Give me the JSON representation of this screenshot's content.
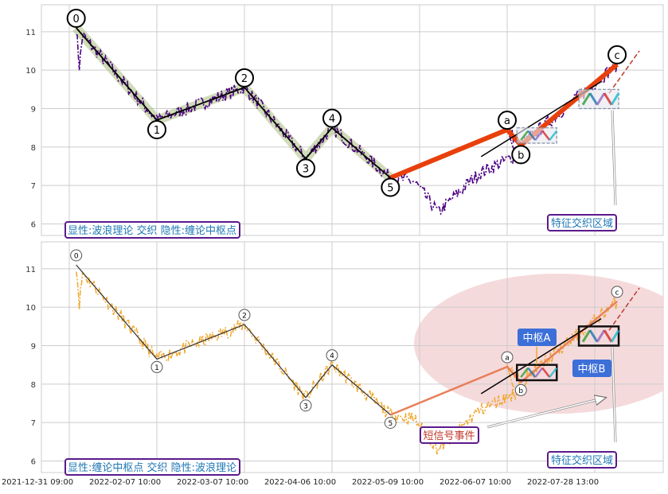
{
  "chart_data": [
    {
      "type": "line",
      "panel": "top",
      "ylim": [
        5.7,
        11.7
      ],
      "y_ticks": [
        6,
        7,
        8,
        9,
        10,
        11
      ],
      "grid": true,
      "annotation_box": "显性:波浪理论 交织 隐性:缠论中枢点",
      "feature_label": "特征交织区域",
      "price_color": "#4b0082",
      "wave_color": "#000000",
      "wave_band_color": "#a9bf7e",
      "trend_color": "#e8400c",
      "wave_points": [
        {
          "label": "0",
          "x": "2022-01-03",
          "y": 11.1
        },
        {
          "label": "1",
          "x": "2022-02-07",
          "y": 8.7
        },
        {
          "label": "2",
          "x": "2022-03-07",
          "y": 9.55
        },
        {
          "label": "3",
          "x": "2022-03-28",
          "y": 7.7
        },
        {
          "label": "4",
          "x": "2022-04-06",
          "y": 8.5
        },
        {
          "label": "5",
          "x": "2022-04-28",
          "y": 7.2
        },
        {
          "label": "a",
          "x": "2022-06-07",
          "y": 8.45
        },
        {
          "label": "b",
          "x": "2022-06-15",
          "y": 8.05
        },
        {
          "label": "c",
          "x": "2022-08-10",
          "y": 10.15
        }
      ]
    },
    {
      "type": "line",
      "panel": "bottom",
      "ylim": [
        5.7,
        11.7
      ],
      "y_ticks": [
        6,
        7,
        8,
        9,
        10,
        11
      ],
      "grid": true,
      "annotation_box": "显性:缠论中枢点 交织 隐性:波浪理论",
      "feature_label": "特征交织区域",
      "signal_label": "短信号事件",
      "pivot_a_label": "中枢A",
      "pivot_b_label": "中枢B",
      "price_color": "#f0a830",
      "wave_color": "#333333",
      "trend_color": "#e8805a",
      "ellipse_color": "#f3d3d6",
      "pivot_label_color": "#3c6fd8",
      "wave_points": [
        {
          "label": "0",
          "x": "2022-01-03",
          "y": 11.1
        },
        {
          "label": "1",
          "x": "2022-02-07",
          "y": 8.65
        },
        {
          "label": "2",
          "x": "2022-03-07",
          "y": 9.55
        },
        {
          "label": "3",
          "x": "2022-03-28",
          "y": 7.65
        },
        {
          "label": "4",
          "x": "2022-04-06",
          "y": 8.5
        },
        {
          "label": "5",
          "x": "2022-04-28",
          "y": 7.2
        },
        {
          "label": "a",
          "x": "2022-06-07",
          "y": 8.45
        },
        {
          "label": "b",
          "x": "2022-06-15",
          "y": 8.05
        },
        {
          "label": "c",
          "x": "2022-08-10",
          "y": 10.15
        }
      ]
    }
  ],
  "x_axis": {
    "tick_labels": [
      "2021-12-31 09:00",
      "2022-02-07 10:00",
      "2022-03-07 10:00",
      "2022-04-06 10:00",
      "2022-05-09 10:00",
      "2022-06-07 10:00",
      "2022-07-28 13:00"
    ]
  }
}
